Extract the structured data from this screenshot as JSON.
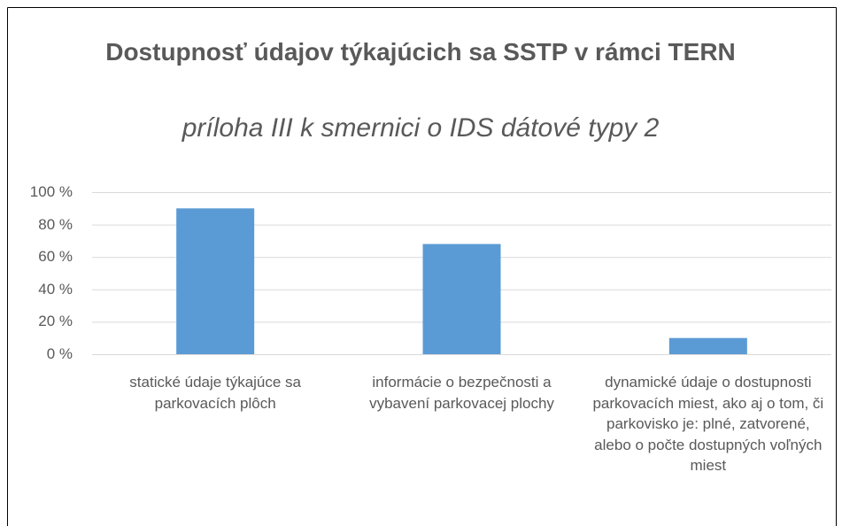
{
  "chart_data": {
    "type": "bar",
    "title": "Dostupnosť údajov týkajúcich sa SSTP v rámci TERN",
    "subtitle": "príloha III k smernici o IDS dátové typy 2",
    "categories": [
      "statické údaje týkajúce sa parkovacích plôch",
      "informácie o bezpečnosti a vybavení parkovacej plochy",
      "dynamické údaje o dostupnosti parkovacích miest, ako aj o tom, či parkovisko je: plné, zatvorené, alebo o počte dostupných voľných miest"
    ],
    "values": [
      90,
      68,
      10
    ],
    "color": "#5b9bd5",
    "ylim": [
      0,
      100
    ],
    "yticks": [
      {
        "value": 0,
        "label": "0 %"
      },
      {
        "value": 20,
        "label": "20 %"
      },
      {
        "value": 40,
        "label": "40 %"
      },
      {
        "value": 60,
        "label": "60 %"
      },
      {
        "value": 80,
        "label": "80 %"
      },
      {
        "value": 100,
        "label": "100 %"
      }
    ],
    "grid": true
  }
}
